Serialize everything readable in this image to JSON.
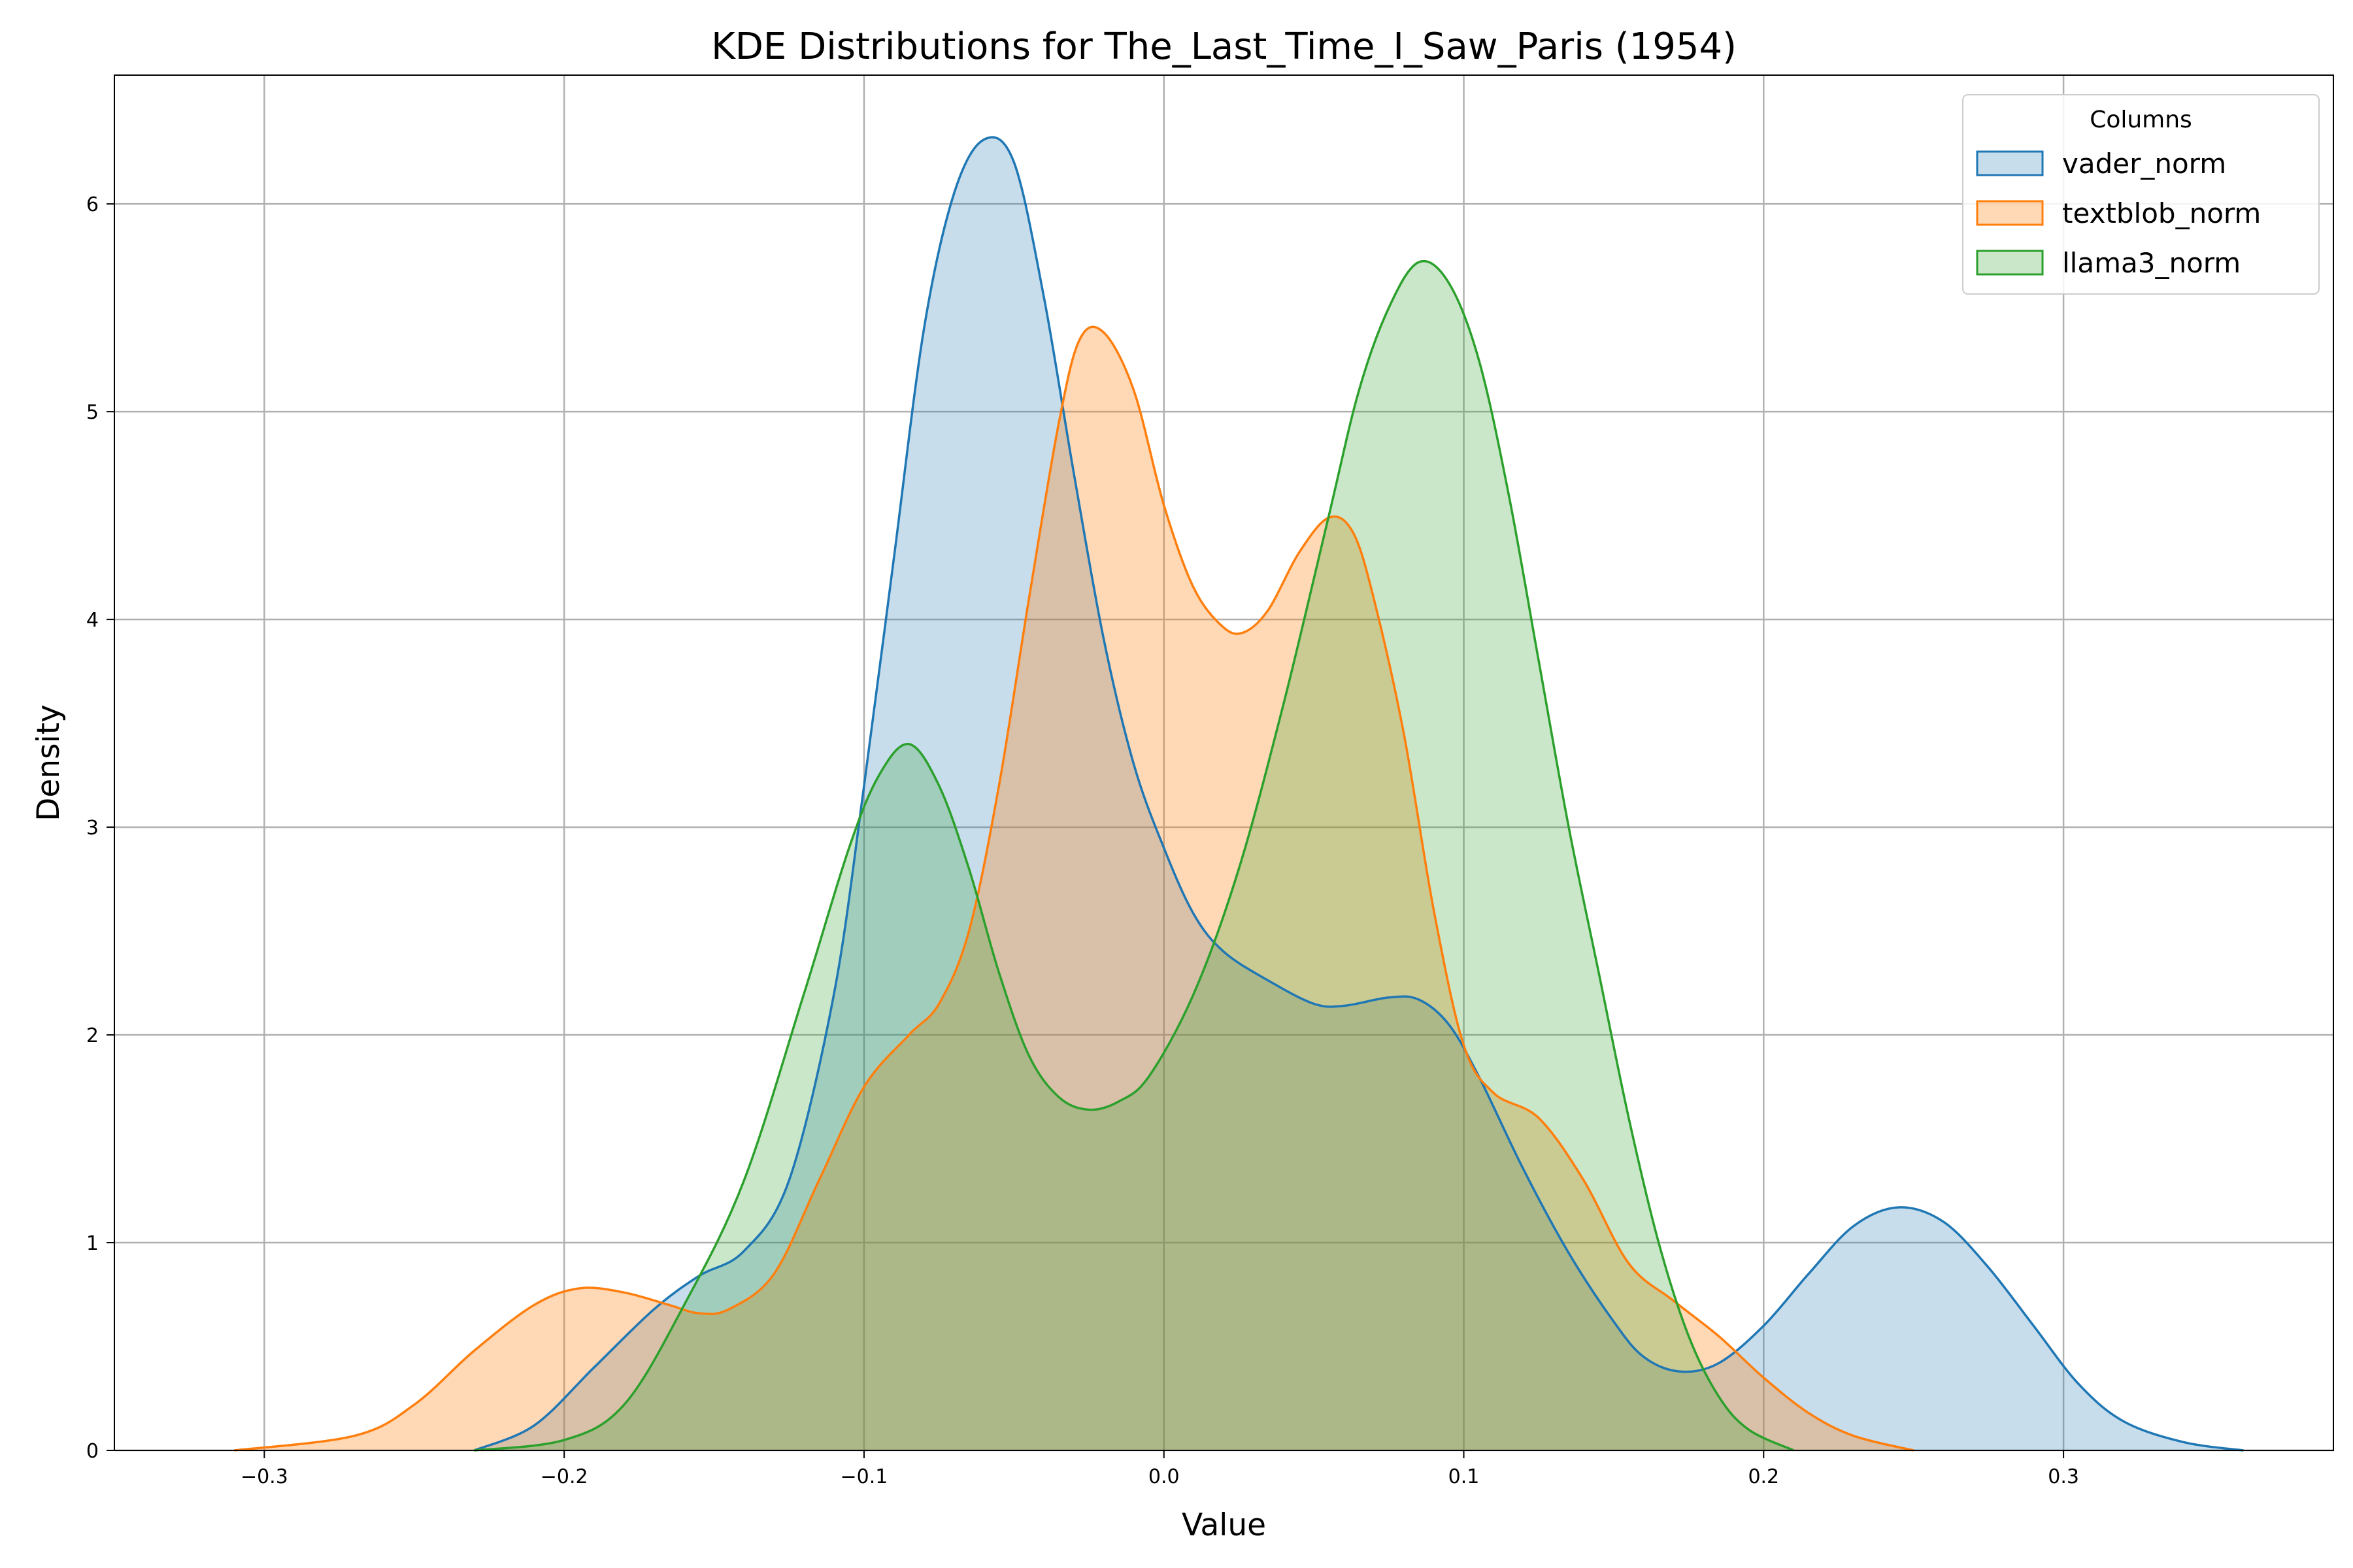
{
  "chart_data": {
    "type": "area",
    "title": "KDE Distributions for The_Last_Time_I_Saw_Paris (1954)",
    "xlabel": "Value",
    "ylabel": "Density",
    "xlim": [
      -0.35,
      0.39
    ],
    "ylim": [
      0,
      6.62
    ],
    "xticks": [
      -0.3,
      -0.2,
      -0.1,
      0.0,
      0.1,
      0.2,
      0.3
    ],
    "xtick_labels": [
      "−0.3",
      "−0.2",
      "−0.1",
      "0.0",
      "0.1",
      "0.2",
      "0.3"
    ],
    "yticks": [
      0,
      1,
      2,
      3,
      4,
      5,
      6
    ],
    "ytick_labels": [
      "0",
      "1",
      "2",
      "3",
      "4",
      "5",
      "6"
    ],
    "grid": true,
    "legend": {
      "title": "Columns",
      "position": "top-right"
    },
    "series": [
      {
        "name": "vader_norm",
        "color": "#1f77b4",
        "fill_opacity": 0.25,
        "points": [
          [
            -0.23,
            0.0
          ],
          [
            -0.21,
            0.12
          ],
          [
            -0.19,
            0.4
          ],
          [
            -0.17,
            0.68
          ],
          [
            -0.155,
            0.84
          ],
          [
            -0.14,
            0.96
          ],
          [
            -0.125,
            1.3
          ],
          [
            -0.11,
            2.2
          ],
          [
            -0.1,
            3.2
          ],
          [
            -0.09,
            4.3
          ],
          [
            -0.08,
            5.4
          ],
          [
            -0.07,
            6.05
          ],
          [
            -0.06,
            6.31
          ],
          [
            -0.05,
            6.2
          ],
          [
            -0.04,
            5.55
          ],
          [
            -0.03,
            4.7
          ],
          [
            -0.02,
            3.9
          ],
          [
            -0.01,
            3.3
          ],
          [
            0.0,
            2.9
          ],
          [
            0.01,
            2.58
          ],
          [
            0.02,
            2.4
          ],
          [
            0.035,
            2.26
          ],
          [
            0.05,
            2.15
          ],
          [
            0.06,
            2.14
          ],
          [
            0.075,
            2.18
          ],
          [
            0.085,
            2.17
          ],
          [
            0.095,
            2.05
          ],
          [
            0.105,
            1.8
          ],
          [
            0.12,
            1.35
          ],
          [
            0.135,
            0.95
          ],
          [
            0.15,
            0.62
          ],
          [
            0.16,
            0.45
          ],
          [
            0.172,
            0.38
          ],
          [
            0.185,
            0.42
          ],
          [
            0.2,
            0.6
          ],
          [
            0.215,
            0.85
          ],
          [
            0.23,
            1.08
          ],
          [
            0.245,
            1.17
          ],
          [
            0.26,
            1.1
          ],
          [
            0.275,
            0.88
          ],
          [
            0.29,
            0.6
          ],
          [
            0.305,
            0.32
          ],
          [
            0.32,
            0.14
          ],
          [
            0.34,
            0.04
          ],
          [
            0.36,
            0.0
          ]
        ]
      },
      {
        "name": "textblob_norm",
        "color": "#ff7f0e",
        "fill_opacity": 0.3,
        "points": [
          [
            -0.31,
            0.0
          ],
          [
            -0.27,
            0.07
          ],
          [
            -0.25,
            0.22
          ],
          [
            -0.23,
            0.48
          ],
          [
            -0.21,
            0.7
          ],
          [
            -0.195,
            0.78
          ],
          [
            -0.18,
            0.76
          ],
          [
            -0.165,
            0.7
          ],
          [
            -0.155,
            0.66
          ],
          [
            -0.145,
            0.68
          ],
          [
            -0.13,
            0.85
          ],
          [
            -0.115,
            1.3
          ],
          [
            -0.1,
            1.75
          ],
          [
            -0.085,
            2.0
          ],
          [
            -0.075,
            2.15
          ],
          [
            -0.065,
            2.5
          ],
          [
            -0.055,
            3.2
          ],
          [
            -0.045,
            4.1
          ],
          [
            -0.035,
            4.95
          ],
          [
            -0.028,
            5.35
          ],
          [
            -0.02,
            5.38
          ],
          [
            -0.01,
            5.1
          ],
          [
            0.0,
            4.55
          ],
          [
            0.01,
            4.15
          ],
          [
            0.02,
            3.96
          ],
          [
            0.027,
            3.94
          ],
          [
            0.035,
            4.05
          ],
          [
            0.045,
            4.32
          ],
          [
            0.055,
            4.49
          ],
          [
            0.063,
            4.42
          ],
          [
            0.07,
            4.1
          ],
          [
            0.08,
            3.45
          ],
          [
            0.09,
            2.6
          ],
          [
            0.1,
            1.95
          ],
          [
            0.11,
            1.72
          ],
          [
            0.125,
            1.6
          ],
          [
            0.14,
            1.3
          ],
          [
            0.155,
            0.9
          ],
          [
            0.17,
            0.72
          ],
          [
            0.185,
            0.55
          ],
          [
            0.2,
            0.35
          ],
          [
            0.215,
            0.18
          ],
          [
            0.23,
            0.07
          ],
          [
            0.25,
            0.0
          ]
        ]
      },
      {
        "name": "llama3_norm",
        "color": "#2ca02c",
        "fill_opacity": 0.25,
        "points": [
          [
            -0.23,
            0.0
          ],
          [
            -0.2,
            0.05
          ],
          [
            -0.18,
            0.22
          ],
          [
            -0.16,
            0.7
          ],
          [
            -0.14,
            1.3
          ],
          [
            -0.12,
            2.2
          ],
          [
            -0.105,
            2.9
          ],
          [
            -0.095,
            3.25
          ],
          [
            -0.085,
            3.4
          ],
          [
            -0.075,
            3.2
          ],
          [
            -0.065,
            2.8
          ],
          [
            -0.055,
            2.3
          ],
          [
            -0.045,
            1.9
          ],
          [
            -0.035,
            1.7
          ],
          [
            -0.025,
            1.64
          ],
          [
            -0.015,
            1.68
          ],
          [
            -0.005,
            1.8
          ],
          [
            0.01,
            2.2
          ],
          [
            0.025,
            2.8
          ],
          [
            0.04,
            3.6
          ],
          [
            0.055,
            4.5
          ],
          [
            0.065,
            5.1
          ],
          [
            0.075,
            5.5
          ],
          [
            0.085,
            5.72
          ],
          [
            0.095,
            5.62
          ],
          [
            0.105,
            5.25
          ],
          [
            0.115,
            4.6
          ],
          [
            0.125,
            3.8
          ],
          [
            0.135,
            3.0
          ],
          [
            0.145,
            2.3
          ],
          [
            0.155,
            1.6
          ],
          [
            0.165,
            1.0
          ],
          [
            0.175,
            0.55
          ],
          [
            0.185,
            0.26
          ],
          [
            0.195,
            0.1
          ],
          [
            0.21,
            0.0
          ]
        ]
      }
    ]
  }
}
